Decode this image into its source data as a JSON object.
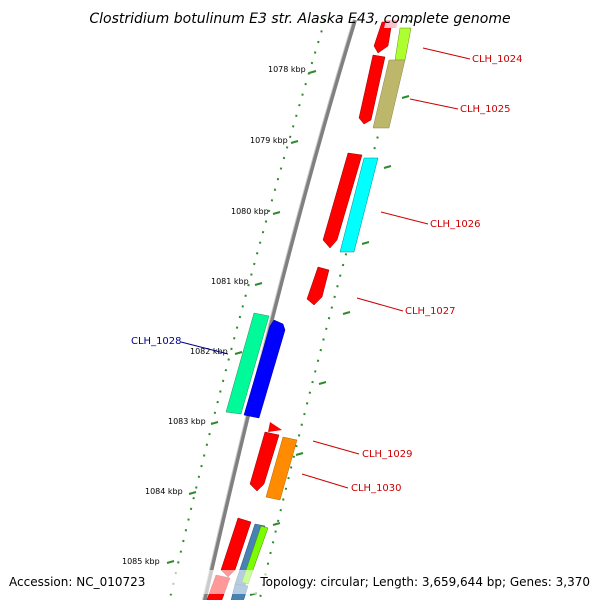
{
  "title": "Clostridium botulinum E3 str. Alaska E43, complete genome",
  "footer": {
    "accession": "Accession: NC_010723",
    "topology": "Topology: circular; Length: 3,659,644 bp; Genes: 3,370"
  },
  "colors": {
    "backbone": "#808080",
    "tick": "#2e8b2e",
    "forward_label": "#cc0000",
    "reverse_label": "#00008b",
    "cds": "#ff0000"
  },
  "ticks": [
    "1078 kbp",
    "1079 kbp",
    "1080 kbp",
    "1081 kbp",
    "1082 kbp",
    "1083 kbp",
    "1084 kbp",
    "1085 kbp"
  ],
  "genes": [
    {
      "label": "CLH_1024",
      "strand": "forward",
      "cds_color": "#ff0000",
      "feature_color": "#adff2f"
    },
    {
      "label": "CLH_1025",
      "strand": "forward",
      "cds_color": "#ff0000",
      "feature_color": "#bdb76b"
    },
    {
      "label": "CLH_1026",
      "strand": "forward",
      "cds_color": "#ff0000",
      "feature_color": "#00ffff"
    },
    {
      "label": "CLH_1027",
      "strand": "forward",
      "cds_color": "#ff0000",
      "feature_color": ""
    },
    {
      "label": "CLH_1028",
      "strand": "reverse",
      "cds_color": "#0000ff",
      "feature_color": "#00fa9a"
    },
    {
      "label": "CLH_1029",
      "strand": "forward",
      "cds_color": "#ff0000",
      "feature_color": "#ff8c00"
    },
    {
      "label": "CLH_1030",
      "strand": "forward",
      "cds_color": "#ff0000",
      "feature_color": "#ff8c00"
    }
  ]
}
